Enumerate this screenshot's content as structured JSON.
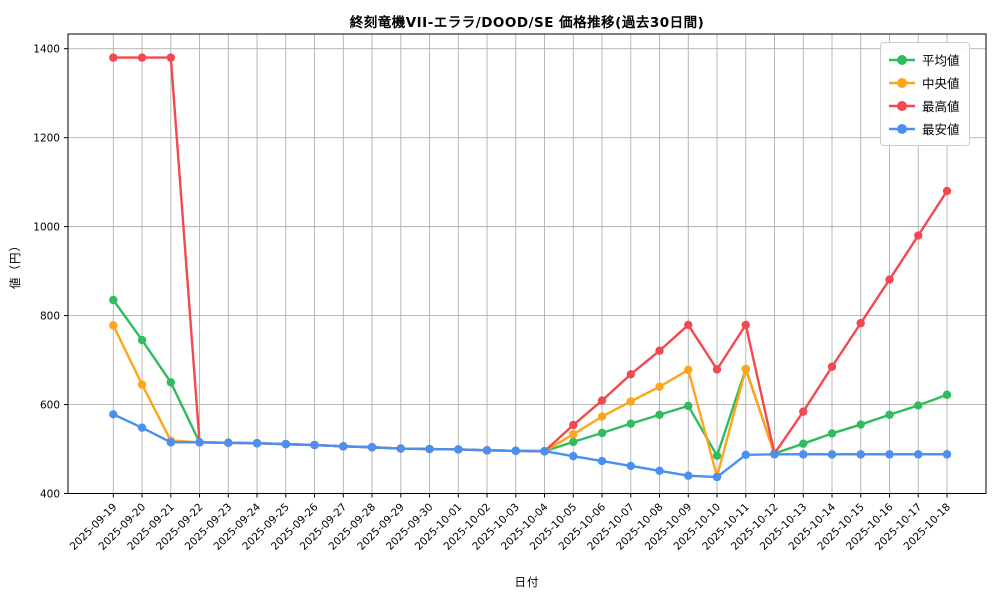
{
  "title": "終刻竜機VII-エララ/DOOD/SE 価格推移(過去30日間)",
  "chart_data": {
    "type": "line",
    "title": "終刻竜機VII-エララ/DOOD/SE 価格推移(過去30日間)",
    "xlabel": "日付",
    "ylabel": "値（円）",
    "ylim": [
      400,
      1433
    ],
    "yticks": [
      400,
      600,
      800,
      1000,
      1200,
      1400
    ],
    "grid": true,
    "legend_position": "upper right",
    "categories": [
      "2025-09-19",
      "2025-09-20",
      "2025-09-21",
      "2025-09-22",
      "2025-09-23",
      "2025-09-24",
      "2025-09-25",
      "2025-09-26",
      "2025-09-27",
      "2025-09-28",
      "2025-09-29",
      "2025-09-30",
      "2025-10-01",
      "2025-10-02",
      "2025-10-03",
      "2025-10-04",
      "2025-10-05",
      "2025-10-06",
      "2025-10-07",
      "2025-10-08",
      "2025-10-09",
      "2025-10-10",
      "2025-10-11",
      "2025-10-12",
      "2025-10-13",
      "2025-10-14",
      "2025-10-15",
      "2025-10-16",
      "2025-10-17",
      "2025-10-18"
    ],
    "series": [
      {
        "key": "average",
        "name": "平均値",
        "color": "#2fbc5f",
        "values": [
          835,
          745,
          650,
          515,
          514,
          513,
          511,
          509,
          506,
          504,
          501,
          500,
          499,
          497,
          496,
          495,
          516,
          536,
          557,
          577,
          597,
          485,
          680,
          490,
          512,
          535,
          555,
          577,
          598,
          622
        ]
      },
      {
        "key": "median",
        "name": "中央値",
        "color": "#ffa41c",
        "values": [
          778,
          645,
          519,
          515,
          514,
          513,
          511,
          509,
          506,
          504,
          501,
          500,
          499,
          497,
          496,
          495,
          533,
          573,
          607,
          640,
          678,
          438,
          680,
          488,
          488,
          488,
          488,
          488,
          488,
          488
        ]
      },
      {
        "key": "highest",
        "name": "最高値",
        "color": "#f4484f",
        "values": [
          1380,
          1380,
          1380,
          515,
          514,
          513,
          511,
          509,
          506,
          504,
          501,
          500,
          499,
          497,
          496,
          495,
          554,
          609,
          668,
          721,
          779,
          679,
          779,
          490,
          584,
          685,
          783,
          881,
          980,
          1080
        ]
      },
      {
        "key": "lowest",
        "name": "最安値",
        "color": "#4a90f2",
        "values": [
          578,
          548,
          515,
          515,
          514,
          513,
          511,
          509,
          506,
          504,
          501,
          500,
          499,
          497,
          496,
          495,
          484,
          473,
          462,
          451,
          440,
          437,
          487,
          488,
          488,
          488,
          488,
          488,
          488,
          488
        ]
      }
    ],
    "axis_color": "#000000",
    "grid_color": "#b0b0b0"
  }
}
